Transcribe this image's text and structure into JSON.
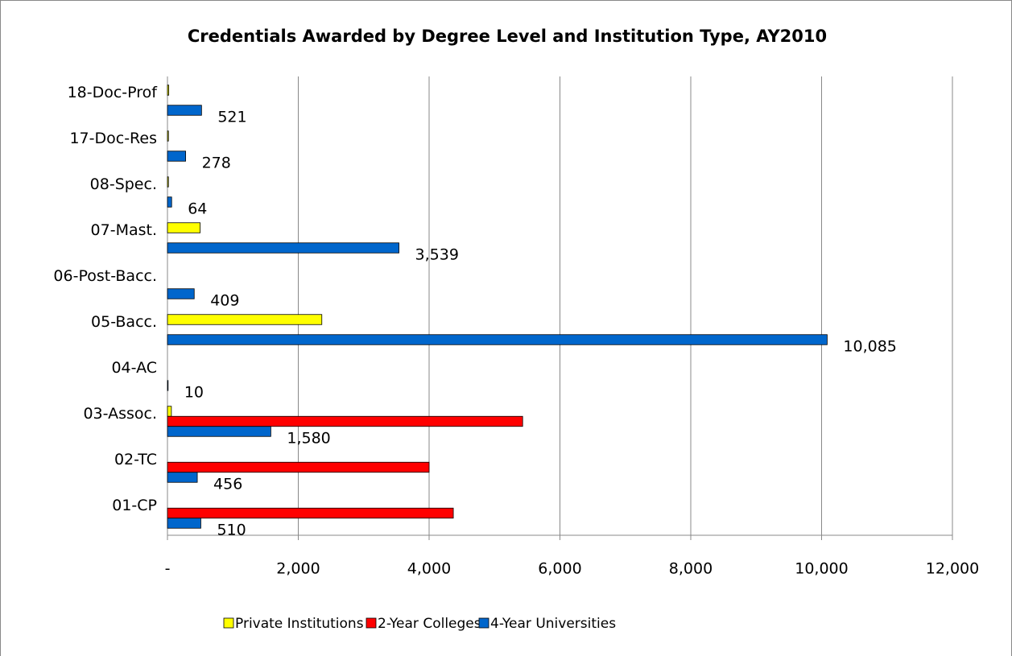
{
  "chart_data": {
    "type": "hbar",
    "title": "Credentials Awarded by Degree Level and Institution Type, AY2010",
    "categories": [
      "01-CP",
      "02-TC",
      "03-Assoc.",
      "04-AC",
      "05-Bacc.",
      "06-Post-Bacc.",
      "07-Mast.",
      "08-Spec.",
      "17-Doc-Res",
      "18-Doc-Prof"
    ],
    "series": [
      {
        "name": "Private Institutions",
        "color": "#ffff00",
        "values": [
          0,
          0,
          60,
          0,
          2360,
          0,
          500,
          15,
          15,
          20
        ]
      },
      {
        "name": "2-Year Colleges",
        "color": "#ff0000",
        "values": [
          4370,
          4000,
          5430,
          0,
          0,
          0,
          0,
          0,
          0,
          0
        ]
      },
      {
        "name": "4-Year Universities",
        "color": "#0066cc",
        "values": [
          510,
          456,
          1580,
          10,
          10085,
          409,
          3539,
          64,
          278,
          521
        ],
        "value_labels": [
          "510",
          "456",
          "1,580",
          "10",
          "10,085",
          "409",
          "3,539",
          "64",
          "278",
          "521"
        ]
      }
    ],
    "xlim": [
      0,
      12000
    ],
    "xticks": [
      {
        "value": 0,
        "label": "-"
      },
      {
        "value": 2000,
        "label": "2,000"
      },
      {
        "value": 4000,
        "label": "4,000"
      },
      {
        "value": 6000,
        "label": "6,000"
      },
      {
        "value": 8000,
        "label": "8,000"
      },
      {
        "value": 10000,
        "label": "10,000"
      },
      {
        "value": 12000,
        "label": "12,000"
      }
    ],
    "grid": true,
    "legend": "bottom"
  }
}
